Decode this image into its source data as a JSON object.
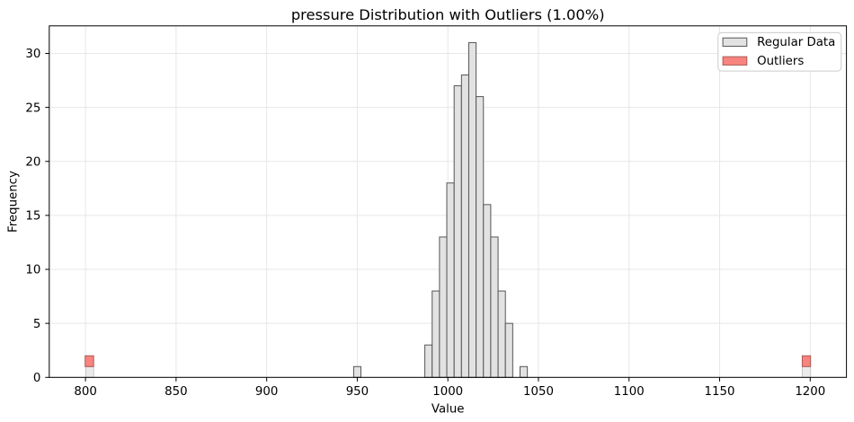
{
  "chart_data": {
    "type": "bar",
    "subtype": "histogram",
    "title": "pressure Distribution with Outliers (1.00%)",
    "xlabel": "Value",
    "ylabel": "Frequency",
    "xlim": [
      780,
      1220
    ],
    "ylim": [
      0,
      32.55
    ],
    "xticks": [
      800,
      850,
      900,
      950,
      1000,
      1050,
      1100,
      1150,
      1200
    ],
    "yticks": [
      0,
      5,
      10,
      15,
      20,
      25,
      30
    ],
    "grid": true,
    "grid_color": "#e7e7e7",
    "legend_position": "upper right",
    "series": [
      {
        "name": "Regular Data",
        "fill": "#e2e2e2",
        "edge": "#565656",
        "bars": [
          {
            "x0": 800.2,
            "x1": 804.5,
            "y0": 0,
            "y1": 1,
            "fill": "#ebebeb",
            "edge": "#c8c8c8"
          },
          {
            "x0": 948.0,
            "x1": 952.0,
            "y0": 0,
            "y1": 1
          },
          {
            "x0": 987.3,
            "x1": 991.34,
            "y0": 0,
            "y1": 3
          },
          {
            "x0": 991.34,
            "x1": 995.38,
            "y0": 0,
            "y1": 8
          },
          {
            "x0": 995.38,
            "x1": 999.42,
            "y0": 0,
            "y1": 13
          },
          {
            "x0": 999.42,
            "x1": 1003.47,
            "y0": 0,
            "y1": 18
          },
          {
            "x0": 1003.47,
            "x1": 1007.51,
            "y0": 0,
            "y1": 27
          },
          {
            "x0": 1007.51,
            "x1": 1011.55,
            "y0": 0,
            "y1": 28
          },
          {
            "x0": 1011.55,
            "x1": 1015.59,
            "y0": 0,
            "y1": 31
          },
          {
            "x0": 1015.59,
            "x1": 1019.63,
            "y0": 0,
            "y1": 26
          },
          {
            "x0": 1019.63,
            "x1": 1023.67,
            "y0": 0,
            "y1": 16
          },
          {
            "x0": 1023.67,
            "x1": 1027.72,
            "y0": 0,
            "y1": 13
          },
          {
            "x0": 1027.72,
            "x1": 1031.76,
            "y0": 0,
            "y1": 8
          },
          {
            "x0": 1031.76,
            "x1": 1035.8,
            "y0": 0,
            "y1": 5
          },
          {
            "x0": 1039.84,
            "x1": 1043.88,
            "y0": 0,
            "y1": 1
          },
          {
            "x0": 1195.6,
            "x1": 1200.2,
            "y0": 0,
            "y1": 1,
            "fill": "#ebebeb",
            "edge": "#c8c8c8"
          }
        ]
      },
      {
        "name": "Outliers",
        "fill": "#f9837e",
        "edge": "#a95c55",
        "bars": [
          {
            "x0": 799.8,
            "x1": 804.5,
            "y0": 1,
            "y1": 2
          },
          {
            "x0": 1195.6,
            "x1": 1200.2,
            "y0": 1,
            "y1": 2
          }
        ]
      }
    ]
  }
}
